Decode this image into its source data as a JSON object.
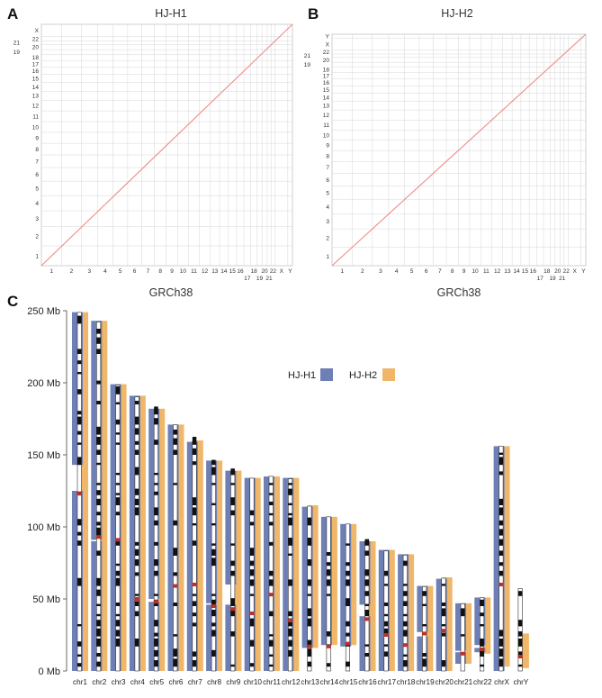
{
  "panels": {
    "a": {
      "letter": "A",
      "title": "HJ-H1"
    },
    "b": {
      "letter": "B",
      "title": "HJ-H2"
    },
    "c": {
      "letter": "C"
    }
  },
  "reference_label": "GRCh38",
  "colors": {
    "hj_h1": "#6e7fb6",
    "hj_h2": "#f0b76a",
    "dotplot_line": "#f08a8a",
    "grid": "#d7d7d7",
    "centromere": "#b83228"
  },
  "chart_data": [
    {
      "type": "scatter",
      "title": "HJ-H1",
      "xlabel": "GRCh38",
      "ylabel": "",
      "x_ticks": [
        "1",
        "2",
        "3",
        "4",
        "5",
        "6",
        "7",
        "8",
        "9",
        "10",
        "11",
        "12",
        "13",
        "14",
        "15",
        "16",
        "17",
        "18",
        "19",
        "20",
        "21",
        "22",
        "X",
        "Y"
      ],
      "y_ticks": [
        "1",
        "2",
        "3",
        "4",
        "5",
        "6",
        "7",
        "8",
        "9",
        "10",
        "11",
        "12",
        "13",
        "14",
        "15",
        "16",
        "17",
        "18",
        "19",
        "20",
        "21",
        "22",
        "X"
      ],
      "grid": true,
      "series": [
        {
          "values": [
            [
              0,
              0
            ],
            [
              1,
              1
            ]
          ]
        }
      ]
    },
    {
      "type": "scatter",
      "title": "HJ-H2",
      "xlabel": "GRCh38",
      "ylabel": "",
      "x_ticks": [
        "1",
        "2",
        "3",
        "4",
        "5",
        "6",
        "7",
        "8",
        "9",
        "10",
        "11",
        "12",
        "13",
        "14",
        "15",
        "16",
        "17",
        "18",
        "19",
        "20",
        "21",
        "22",
        "X",
        "Y"
      ],
      "y_ticks": [
        "1",
        "2",
        "3",
        "4",
        "5",
        "6",
        "7",
        "8",
        "9",
        "10",
        "11",
        "12",
        "13",
        "14",
        "15",
        "16",
        "17",
        "18",
        "19",
        "20",
        "21",
        "22",
        "X",
        "Y"
      ],
      "grid": true,
      "series": [
        {
          "values": [
            [
              0,
              0
            ],
            [
              1,
              1
            ]
          ]
        }
      ]
    },
    {
      "type": "bar",
      "title": "",
      "xlabel": "",
      "ylabel": "",
      "y_ticks": [
        "0 Mb",
        "50 Mb",
        "100 Mb",
        "150 Mb",
        "200 Mb",
        "250 Mb"
      ],
      "ylim": [
        0,
        250
      ],
      "legend": {
        "placement": "top-right",
        "entries": [
          "HJ-H1",
          "HJ-H2"
        ]
      },
      "categories": [
        "chr1",
        "chr2",
        "chr3",
        "chr4",
        "chr5",
        "chr6",
        "chr7",
        "chr8",
        "chr9",
        "chr10",
        "chr11",
        "chr12",
        "chr13",
        "chr14",
        "chr15",
        "chr16",
        "chr17",
        "chr18",
        "chr19",
        "chr20",
        "chr21",
        "chr22",
        "chrX",
        "chrY"
      ],
      "chrom_length": [
        248.9,
        242.2,
        198.3,
        190.2,
        181.5,
        170.8,
        159.3,
        145.1,
        138.4,
        133.8,
        135.1,
        133.3,
        114.4,
        107.0,
        102.0,
        90.3,
        83.3,
        80.4,
        58.6,
        64.4,
        46.7,
        50.8,
        156.0,
        57.2
      ],
      "series": [
        {
          "name": "HJ-H1",
          "segments": [
            [
              [
                0,
                125
              ],
              [
                143,
                249
              ]
            ],
            [
              [
                0,
                90
              ],
              [
                91,
                243
              ]
            ],
            [
              [
                0,
                199
              ]
            ],
            [
              [
                0,
                191
              ]
            ],
            [
              [
                0,
                48
              ],
              [
                50,
                182
              ]
            ],
            [
              [
                0,
                171
              ]
            ],
            [
              [
                0,
                159
              ]
            ],
            [
              [
                0,
                46
              ],
              [
                47,
                146
              ]
            ],
            [
              [
                0,
                46
              ],
              [
                60,
                139
              ]
            ],
            [
              [
                0,
                134
              ]
            ],
            [
              [
                0,
                135
              ]
            ],
            [
              [
                0,
                134
              ]
            ],
            [
              [
                16,
                114
              ]
            ],
            [
              [
                18,
                107
              ]
            ],
            [
              [
                17,
                102
              ]
            ],
            [
              [
                0,
                38
              ],
              [
                46,
                90
              ]
            ],
            [
              [
                0,
                84
              ]
            ],
            [
              [
                0,
                81
              ]
            ],
            [
              [
                0,
                24
              ],
              [
                27,
                59
              ]
            ],
            [
              [
                0,
                64
              ]
            ],
            [
              [
                5,
                13
              ],
              [
                14,
                47
              ]
            ],
            [
              [
                13,
                16
              ],
              [
                18,
                51
              ]
            ],
            [
              [
                0,
                156
              ]
            ],
            []
          ]
        },
        {
          "name": "HJ-H2",
          "segments": [
            [
              [
                0,
                249
              ]
            ],
            [
              [
                0,
                243
              ]
            ],
            [
              [
                0,
                199
              ]
            ],
            [
              [
                0,
                191
              ]
            ],
            [
              [
                0,
                182
              ]
            ],
            [
              [
                0,
                171
              ]
            ],
            [
              [
                0,
                160
              ]
            ],
            [
              [
                0,
                146
              ]
            ],
            [
              [
                0,
                139
              ]
            ],
            [
              [
                0,
                134
              ]
            ],
            [
              [
                0,
                135
              ]
            ],
            [
              [
                0,
                134
              ]
            ],
            [
              [
                16,
                115
              ]
            ],
            [
              [
                18,
                107
              ]
            ],
            [
              [
                18,
                102
              ]
            ],
            [
              [
                0,
                90
              ]
            ],
            [
              [
                0,
                84
              ]
            ],
            [
              [
                0,
                81
              ]
            ],
            [
              [
                0,
                59
              ]
            ],
            [
              [
                0,
                65
              ]
            ],
            [
              [
                5,
                47
              ]
            ],
            [
              [
                12,
                51
              ]
            ],
            [
              [
                3,
                156
              ]
            ],
            [
              [
                2,
                26
              ]
            ]
          ]
        }
      ]
    }
  ]
}
